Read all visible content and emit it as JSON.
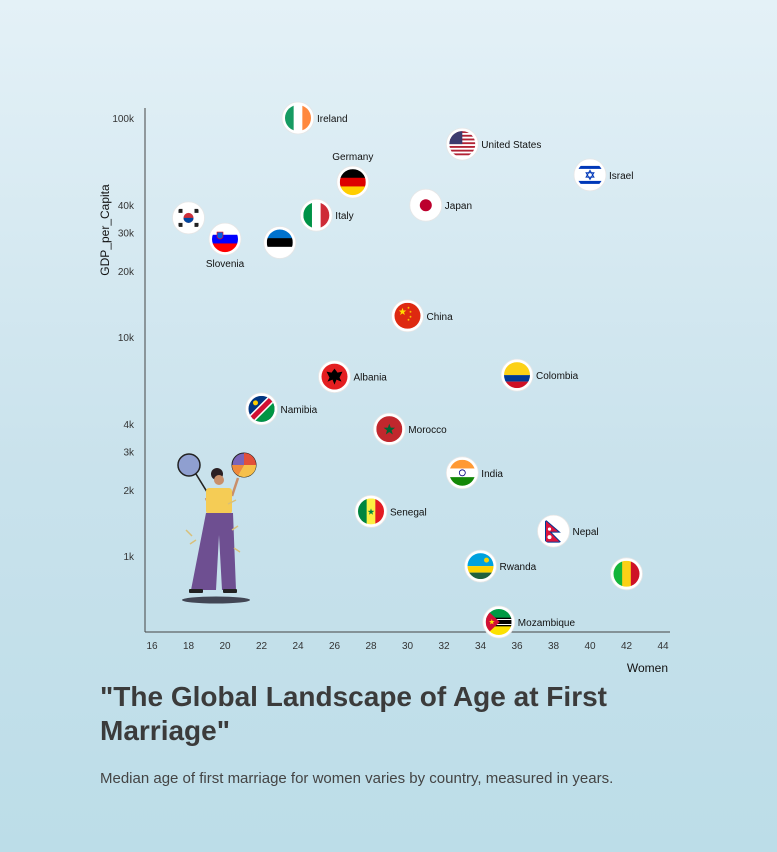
{
  "title": "\"The Global Landscape of Age at First Marriage\"",
  "subtitle": "Median age of first marriage for women varies by country, measured in years.",
  "chart_data": {
    "type": "scatter",
    "xlabel": "Women",
    "ylabel": "GDP_per_Capita",
    "xlim": [
      16,
      44
    ],
    "ylim": [
      500,
      120000
    ],
    "yscale": "log",
    "x_ticks": [
      16,
      18,
      20,
      22,
      24,
      26,
      28,
      30,
      32,
      34,
      36,
      38,
      40,
      42,
      44
    ],
    "y_ticks": [
      {
        "value": 1000,
        "label": "1k"
      },
      {
        "value": 2000,
        "label": "2k"
      },
      {
        "value": 3000,
        "label": "3k"
      },
      {
        "value": 4000,
        "label": "4k"
      },
      {
        "value": 10000,
        "label": "10k"
      },
      {
        "value": 20000,
        "label": "20k"
      },
      {
        "value": 30000,
        "label": "30k"
      },
      {
        "value": 40000,
        "label": "40k"
      },
      {
        "value": 100000,
        "label": "100k"
      }
    ],
    "points": [
      {
        "x": 24,
        "y": 100000,
        "label": "Ireland",
        "flag": "ireland",
        "label_pos": "right"
      },
      {
        "x": 33,
        "y": 76000,
        "label": "United States",
        "flag": "usa",
        "label_pos": "right"
      },
      {
        "x": 40,
        "y": 55000,
        "label": "Israel",
        "flag": "israel",
        "label_pos": "right"
      },
      {
        "x": 27,
        "y": 51000,
        "label": "Germany",
        "flag": "germany",
        "label_pos": "top"
      },
      {
        "x": 31,
        "y": 40000,
        "label": "Japan",
        "flag": "japan",
        "label_pos": "right"
      },
      {
        "x": 25,
        "y": 36000,
        "label": "Italy",
        "flag": "italy",
        "label_pos": "right"
      },
      {
        "x": 18,
        "y": 35000,
        "label": "",
        "flag": "south-korea",
        "label_pos": "none"
      },
      {
        "x": 20,
        "y": 28000,
        "label": "Slovenia",
        "flag": "slovenia",
        "label_pos": "bottom"
      },
      {
        "x": 23,
        "y": 27000,
        "label": "",
        "flag": "estonia",
        "label_pos": "none"
      },
      {
        "x": 30,
        "y": 12500,
        "label": "China",
        "flag": "china",
        "label_pos": "right"
      },
      {
        "x": 26,
        "y": 6600,
        "label": "Albania",
        "flag": "albania",
        "label_pos": "right"
      },
      {
        "x": 36,
        "y": 6700,
        "label": "Colombia",
        "flag": "colombia",
        "label_pos": "right"
      },
      {
        "x": 22,
        "y": 4700,
        "label": "Namibia",
        "flag": "namibia",
        "label_pos": "right"
      },
      {
        "x": 29,
        "y": 3800,
        "label": "Morocco",
        "flag": "morocco",
        "label_pos": "right"
      },
      {
        "x": 33,
        "y": 2400,
        "label": "India",
        "flag": "india",
        "label_pos": "right"
      },
      {
        "x": 28,
        "y": 1600,
        "label": "Senegal",
        "flag": "senegal",
        "label_pos": "right"
      },
      {
        "x": 38,
        "y": 1300,
        "label": "Nepal",
        "flag": "nepal",
        "label_pos": "right"
      },
      {
        "x": 34,
        "y": 900,
        "label": "Rwanda",
        "flag": "rwanda",
        "label_pos": "right"
      },
      {
        "x": 42,
        "y": 830,
        "label": "",
        "flag": "mali",
        "label_pos": "none"
      },
      {
        "x": 35,
        "y": 500,
        "label": "Mozambique",
        "flag": "mozambique",
        "label_pos": "right"
      }
    ]
  }
}
